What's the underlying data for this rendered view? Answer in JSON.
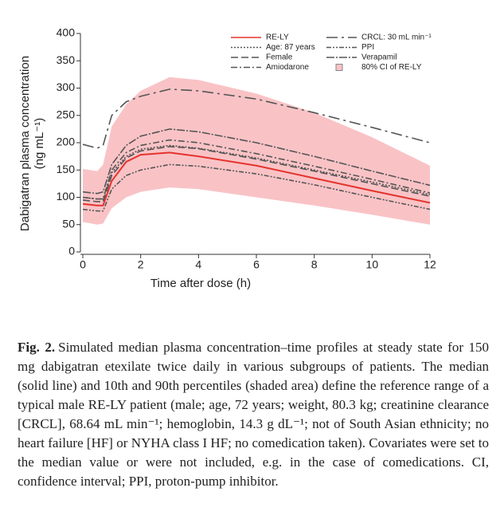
{
  "chart_data": {
    "type": "line",
    "xlabel": "Time after dose (h)",
    "ylabel": [
      "Dabigatran plasma concentration",
      "(ng mL⁻¹)"
    ],
    "x": [
      0,
      0.5,
      0.7,
      1,
      1.5,
      2,
      3,
      4,
      6,
      8,
      10,
      12
    ],
    "xlim": [
      0,
      12
    ],
    "xticks": [
      0,
      2,
      4,
      6,
      8,
      10,
      12
    ],
    "ylim": [
      0,
      400
    ],
    "yticks": [
      0,
      50,
      100,
      150,
      200,
      250,
      300,
      350,
      400
    ],
    "series": [
      {
        "name": "RE-LY",
        "color": "#e5332e",
        "dash": "none",
        "values": [
          88,
          85,
          85,
          130,
          165,
          178,
          182,
          175,
          158,
          135,
          112,
          90
        ]
      },
      {
        "name": "Age: 87 years",
        "color": "#555555",
        "dash": "2 2",
        "values": [
          100,
          97,
          97,
          145,
          175,
          188,
          195,
          190,
          172,
          150,
          128,
          105
        ]
      },
      {
        "name": "Female",
        "color": "#555555",
        "dash": "9 4",
        "values": [
          95,
          92,
          92,
          140,
          172,
          185,
          193,
          189,
          170,
          148,
          125,
          102
        ]
      },
      {
        "name": "Amiodarone",
        "color": "#555555",
        "dash": "8 3 2 3",
        "values": [
          100,
          97,
          97,
          150,
          182,
          195,
          205,
          200,
          180,
          157,
          133,
          108
        ]
      },
      {
        "name": "CRCL: 30 mL min⁻¹",
        "color": "#555555",
        "dash": "14 5 3 5",
        "values": [
          197,
          190,
          195,
          250,
          275,
          285,
          298,
          295,
          280,
          255,
          228,
          200
        ]
      },
      {
        "name": "PPI",
        "color": "#555555",
        "dash": "6 2 2 2 2 2",
        "values": [
          78,
          75,
          75,
          115,
          140,
          150,
          160,
          157,
          143,
          123,
          100,
          78
        ]
      },
      {
        "name": "Verapamil",
        "color": "#555555",
        "dash": "10 2 2 2",
        "values": [
          110,
          107,
          110,
          160,
          195,
          212,
          225,
          220,
          200,
          175,
          148,
          122
        ]
      }
    ],
    "band": {
      "name": "80% CI of RE-LY",
      "color": "#f9c3c6",
      "lower": [
        55,
        50,
        52,
        80,
        100,
        110,
        118,
        115,
        100,
        85,
        68,
        50
      ],
      "upper": [
        152,
        148,
        160,
        230,
        270,
        295,
        320,
        315,
        290,
        255,
        210,
        158
      ]
    },
    "caption": {
      "label": "Fig. 2.",
      "text": "Simulated median plasma concentration–time profiles at steady state for 150 mg dabigatran etexilate twice daily in various subgroups of patients. The median (solid line) and 10th and 90th percentiles (shaded area) define the reference range of a typical male RE-LY patient (male; age, 72 years; weight, 80.3 kg; creatinine clearance [CRCL], 68.64 mL min⁻¹; hemoglobin, 14.3 g dL⁻¹; not of South Asian ethnicity; no heart failure [HF] or NYHA class I HF; no comedication taken). Covariates were set to the median value or were not included, e.g. in the case of comedications. CI, confidence interval; PPI, proton-pump inhibitor."
    }
  }
}
